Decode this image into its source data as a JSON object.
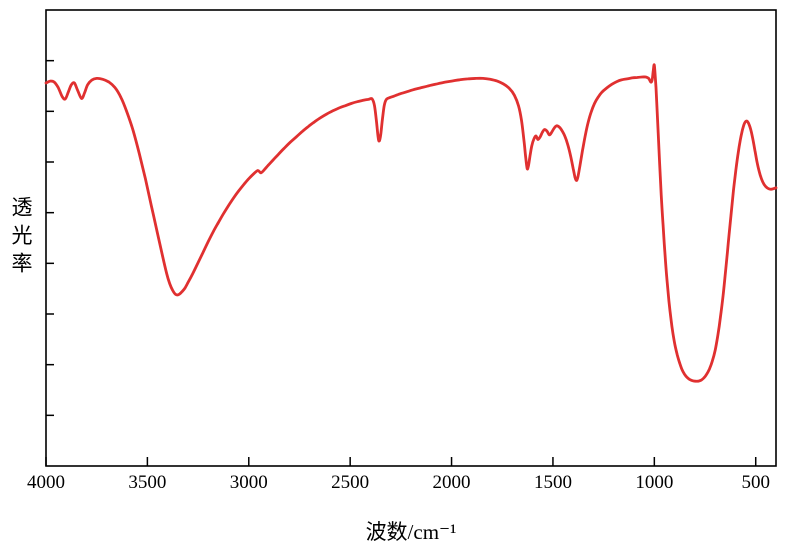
{
  "chart_data": {
    "type": "line",
    "title": "",
    "xlabel": "波数/cm⁻¹",
    "ylabel": "透光率",
    "x_range": [
      4000,
      400
    ],
    "x_axis_reversed": true,
    "x_ticks": [
      4000,
      3500,
      3000,
      2500,
      2000,
      1500,
      1000,
      500
    ],
    "y_range": [
      0,
      100
    ],
    "y_axis_labeled": false,
    "y_tick_count": 8,
    "grid": false,
    "legend_position": "none",
    "line_color": "#e03030",
    "axis_color": "#000000",
    "background": "#ffffff",
    "series": [
      {
        "name": "transmittance",
        "points": [
          [
            4000,
            84
          ],
          [
            3980,
            84.4
          ],
          [
            3960,
            84.2
          ],
          [
            3940,
            83
          ],
          [
            3920,
            81
          ],
          [
            3905,
            80.5
          ],
          [
            3890,
            82
          ],
          [
            3875,
            83.6
          ],
          [
            3860,
            84
          ],
          [
            3845,
            82.5
          ],
          [
            3825,
            80.6
          ],
          [
            3810,
            81.8
          ],
          [
            3795,
            83.6
          ],
          [
            3775,
            84.6
          ],
          [
            3750,
            85
          ],
          [
            3720,
            84.8
          ],
          [
            3690,
            84.2
          ],
          [
            3660,
            83
          ],
          [
            3630,
            80.8
          ],
          [
            3600,
            77.5
          ],
          [
            3570,
            73.5
          ],
          [
            3540,
            68.5
          ],
          [
            3510,
            63
          ],
          [
            3480,
            57
          ],
          [
            3450,
            51
          ],
          [
            3425,
            46
          ],
          [
            3405,
            42.2
          ],
          [
            3390,
            40
          ],
          [
            3375,
            38.5
          ],
          [
            3360,
            37.6
          ],
          [
            3345,
            37.6
          ],
          [
            3330,
            38.2
          ],
          [
            3315,
            39
          ],
          [
            3300,
            40.2
          ],
          [
            3275,
            42.3
          ],
          [
            3250,
            44.6
          ],
          [
            3225,
            46.9
          ],
          [
            3200,
            49.2
          ],
          [
            3175,
            51.4
          ],
          [
            3150,
            53.4
          ],
          [
            3125,
            55.3
          ],
          [
            3100,
            57.1
          ],
          [
            3075,
            58.8
          ],
          [
            3050,
            60.3
          ],
          [
            3025,
            61.7
          ],
          [
            3000,
            63
          ],
          [
            2975,
            64.1
          ],
          [
            2955,
            64.8
          ],
          [
            2940,
            64.3
          ],
          [
            2925,
            64.9
          ],
          [
            2905,
            65.9
          ],
          [
            2880,
            67.1
          ],
          [
            2855,
            68.3
          ],
          [
            2825,
            69.7
          ],
          [
            2795,
            71
          ],
          [
            2765,
            72.2
          ],
          [
            2735,
            73.4
          ],
          [
            2705,
            74.5
          ],
          [
            2675,
            75.5
          ],
          [
            2645,
            76.4
          ],
          [
            2615,
            77.2
          ],
          [
            2585,
            77.9
          ],
          [
            2555,
            78.5
          ],
          [
            2525,
            79
          ],
          [
            2495,
            79.5
          ],
          [
            2465,
            79.9
          ],
          [
            2435,
            80.2
          ],
          [
            2410,
            80.4
          ],
          [
            2392,
            80.5
          ],
          [
            2380,
            79
          ],
          [
            2370,
            75.5
          ],
          [
            2362,
            72
          ],
          [
            2356,
            71.3
          ],
          [
            2349,
            72.8
          ],
          [
            2341,
            76
          ],
          [
            2332,
            79
          ],
          [
            2323,
            80.3
          ],
          [
            2310,
            80.7
          ],
          [
            2285,
            81.1
          ],
          [
            2255,
            81.6
          ],
          [
            2225,
            82
          ],
          [
            2190,
            82.5
          ],
          [
            2155,
            82.9
          ],
          [
            2120,
            83.3
          ],
          [
            2080,
            83.7
          ],
          [
            2040,
            84.1
          ],
          [
            2000,
            84.4
          ],
          [
            1960,
            84.7
          ],
          [
            1920,
            84.9
          ],
          [
            1880,
            85
          ],
          [
            1845,
            85
          ],
          [
            1810,
            84.8
          ],
          [
            1775,
            84.4
          ],
          [
            1745,
            83.8
          ],
          [
            1715,
            82.8
          ],
          [
            1690,
            81.3
          ],
          [
            1670,
            79
          ],
          [
            1655,
            75.8
          ],
          [
            1643,
            71.5
          ],
          [
            1634,
            67.5
          ],
          [
            1627,
            65.2
          ],
          [
            1621,
            65.8
          ],
          [
            1613,
            68
          ],
          [
            1604,
            70.3
          ],
          [
            1594,
            71.7
          ],
          [
            1584,
            72.4
          ],
          [
            1574,
            71.6
          ],
          [
            1563,
            72.2
          ],
          [
            1552,
            73.2
          ],
          [
            1541,
            73.8
          ],
          [
            1529,
            73.4
          ],
          [
            1517,
            72.6
          ],
          [
            1506,
            73.2
          ],
          [
            1494,
            74.1
          ],
          [
            1481,
            74.6
          ],
          [
            1468,
            74.3
          ],
          [
            1455,
            73.5
          ],
          [
            1441,
            72.3
          ],
          [
            1427,
            70.5
          ],
          [
            1413,
            68
          ],
          [
            1400,
            65.2
          ],
          [
            1391,
            63.3
          ],
          [
            1384,
            62.6
          ],
          [
            1377,
            63.4
          ],
          [
            1367,
            65.8
          ],
          [
            1354,
            69.2
          ],
          [
            1340,
            72.6
          ],
          [
            1326,
            75.4
          ],
          [
            1311,
            77.7
          ],
          [
            1295,
            79.5
          ],
          [
            1277,
            80.9
          ],
          [
            1258,
            82
          ],
          [
            1235,
            82.9
          ],
          [
            1210,
            83.7
          ],
          [
            1185,
            84.3
          ],
          [
            1160,
            84.7
          ],
          [
            1135,
            84.9
          ],
          [
            1110,
            85.1
          ],
          [
            1085,
            85.2
          ],
          [
            1060,
            85.3
          ],
          [
            1042,
            85.3
          ],
          [
            1028,
            85
          ],
          [
            1018,
            84.2
          ],
          [
            1011,
            84.6
          ],
          [
            1006,
            86.4
          ],
          [
            1001,
            88
          ],
          [
            997,
            86.5
          ],
          [
            992,
            83
          ],
          [
            987,
            78.5
          ],
          [
            981,
            73
          ],
          [
            974,
            66.5
          ],
          [
            966,
            59.5
          ],
          [
            957,
            52.8
          ],
          [
            948,
            46.8
          ],
          [
            938,
            41
          ],
          [
            928,
            36.2
          ],
          [
            918,
            32.2
          ],
          [
            908,
            29
          ],
          [
            898,
            26.5
          ],
          [
            887,
            24.4
          ],
          [
            876,
            22.7
          ],
          [
            864,
            21.2
          ],
          [
            852,
            20.2
          ],
          [
            840,
            19.5
          ],
          [
            826,
            19
          ],
          [
            812,
            18.7
          ],
          [
            798,
            18.6
          ],
          [
            784,
            18.6
          ],
          [
            770,
            18.8
          ],
          [
            756,
            19.3
          ],
          [
            742,
            20.1
          ],
          [
            728,
            21.3
          ],
          [
            714,
            23
          ],
          [
            700,
            25.4
          ],
          [
            687,
            28.6
          ],
          [
            674,
            32.6
          ],
          [
            661,
            37.4
          ],
          [
            648,
            43
          ],
          [
            635,
            49
          ],
          [
            622,
            55
          ],
          [
            610,
            60.3
          ],
          [
            598,
            64.8
          ],
          [
            587,
            68.5
          ],
          [
            576,
            71.5
          ],
          [
            566,
            73.6
          ],
          [
            557,
            75
          ],
          [
            548,
            75.6
          ],
          [
            540,
            75.5
          ],
          [
            531,
            74.7
          ],
          [
            522,
            73.3
          ],
          [
            513,
            71.4
          ],
          [
            504,
            69.2
          ],
          [
            494,
            66.8
          ],
          [
            483,
            64.6
          ],
          [
            471,
            62.9
          ],
          [
            458,
            61.7
          ],
          [
            444,
            61
          ],
          [
            428,
            60.7
          ],
          [
            414,
            60.8
          ],
          [
            400,
            61
          ]
        ]
      }
    ]
  }
}
